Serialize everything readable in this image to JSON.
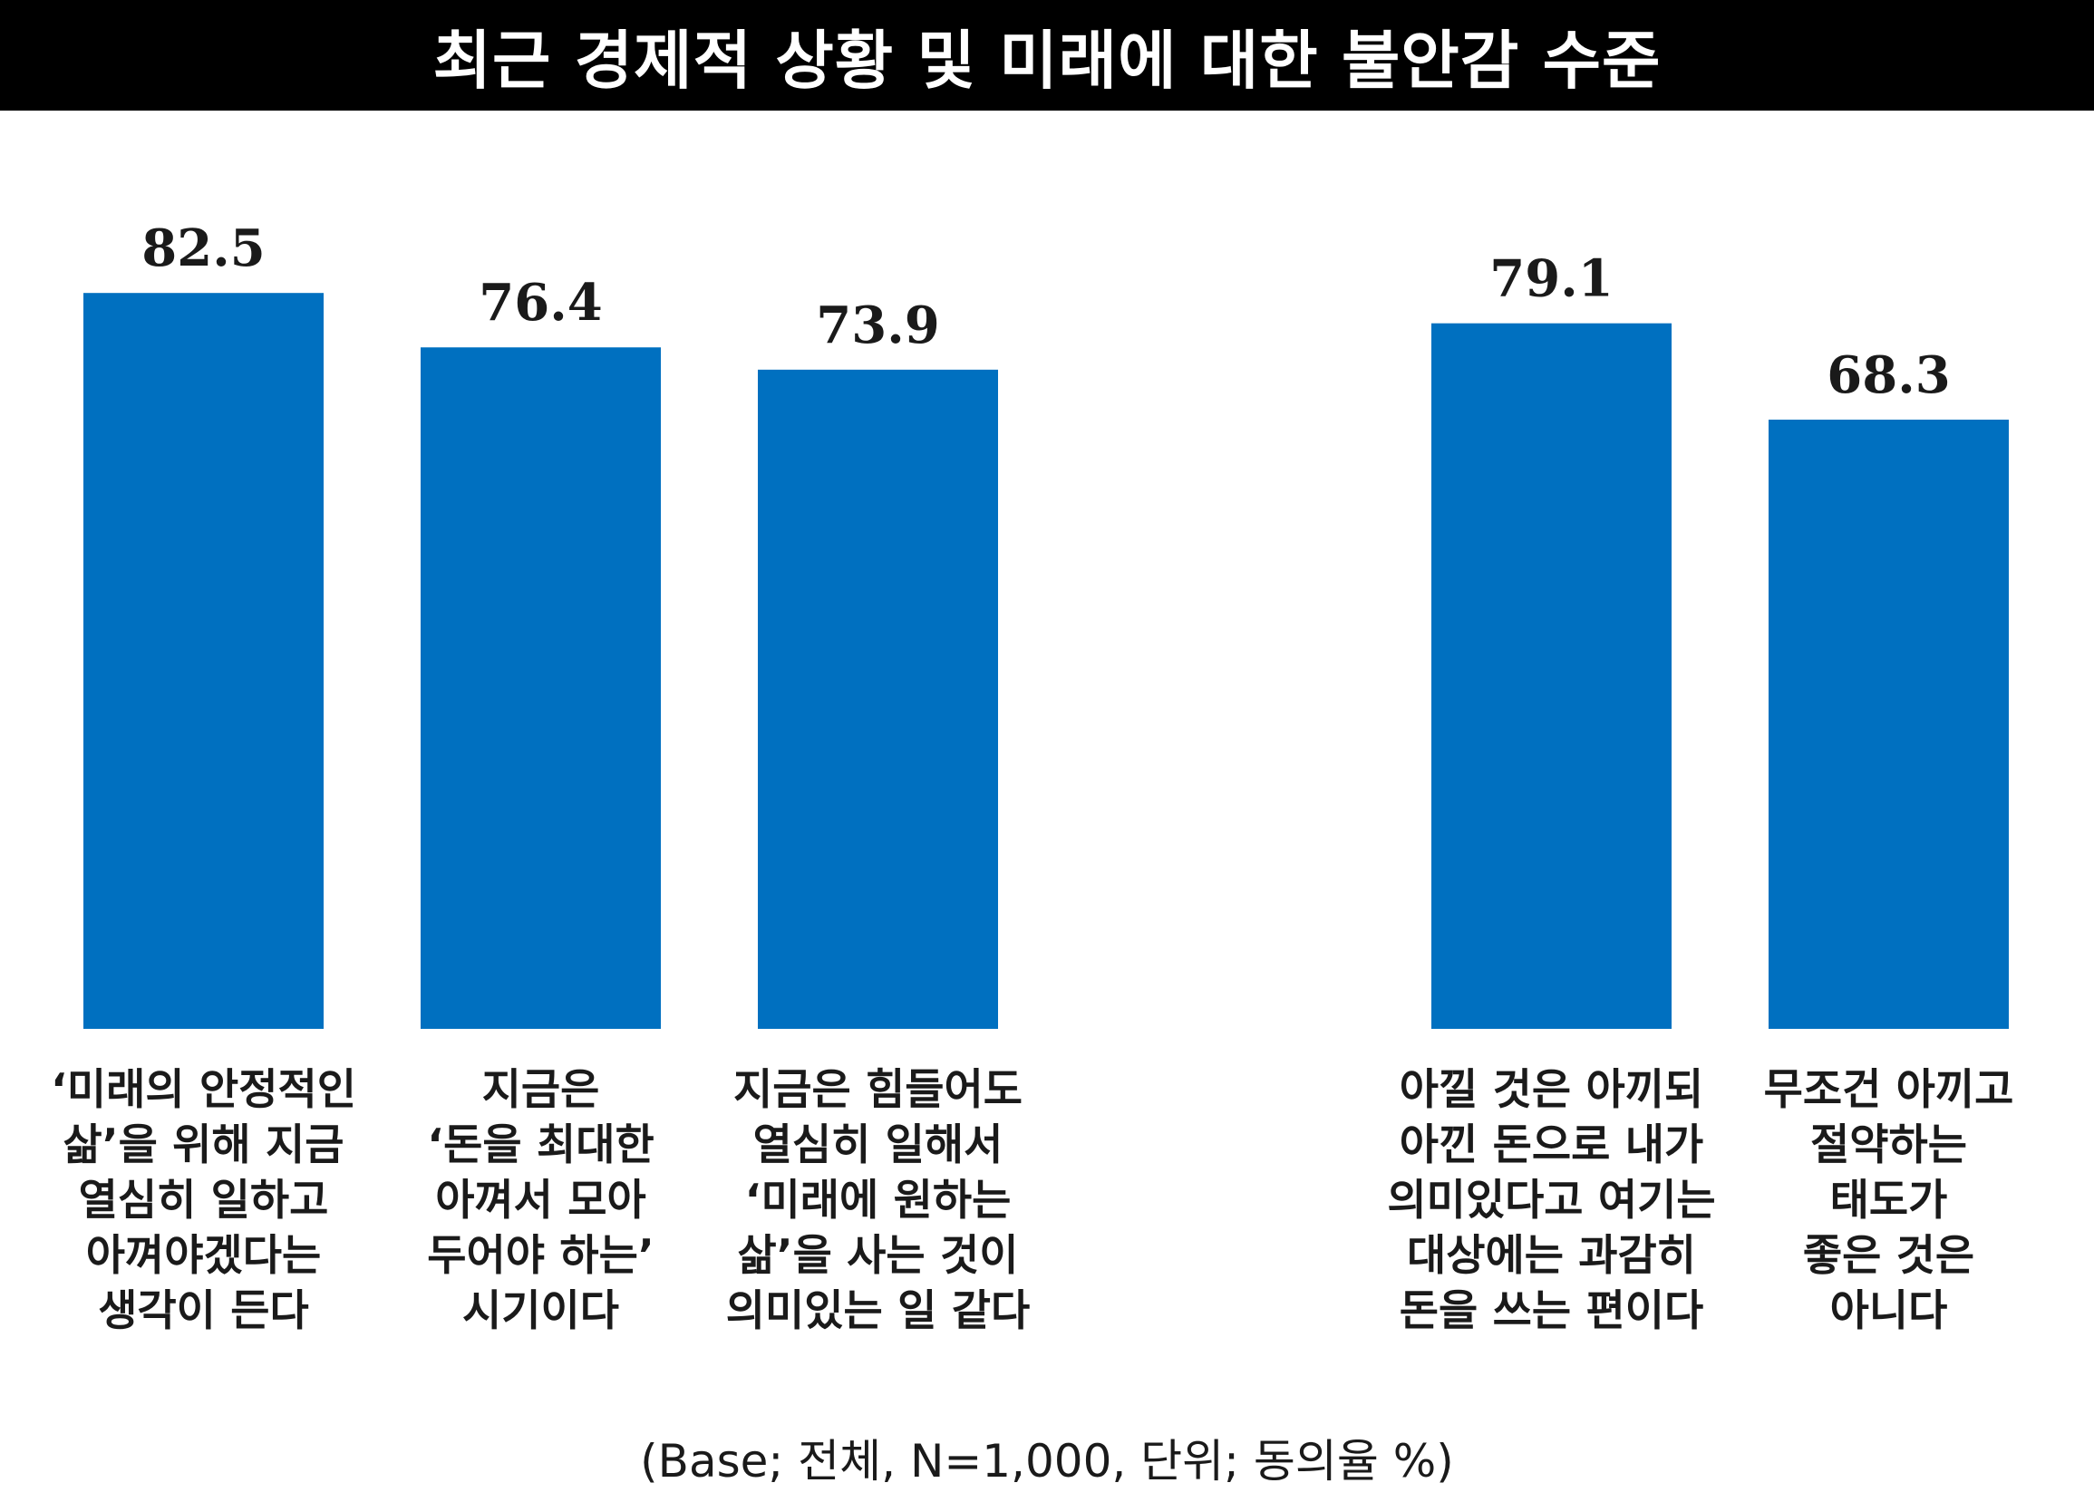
{
  "title": "최근 경제적 상황 및 미래에 대한 불안감 수준",
  "footnote": "(Base; 전체, N=1,000, 단위; 동의율 %)",
  "colors": {
    "bar": "#0070c0",
    "title_bg": "#000000",
    "title_text": "#ffffff"
  },
  "chart_data": {
    "type": "bar",
    "title": "최근 경제적 상황 및 미래에 대한 불안감 수준",
    "xlabel": "",
    "ylabel": "",
    "grid": false,
    "categories": [
      "‘미래의 안정적인\n삶’을 위해 지금\n열심히 일하고\n아껴야겠다는\n생각이 든다",
      "지금은\n‘돈을 최대한\n아껴서 모아\n두어야 하는’\n시기이다",
      "지금은 힘들어도\n열심히 일해서\n‘미래에 원하는\n삶’을 사는 것이\n의미있는 일 같다",
      "아낄 것은 아끼되\n아낀 돈으로 내가\n의미있다고 여기는\n대상에는 과감히\n돈을 쓰는 편이다",
      "무조건 아끼고\n절약하는\n태도가\n좋은 것은\n아니다"
    ],
    "values": [
      82.5,
      76.4,
      73.9,
      79.1,
      68.3
    ],
    "value_labels": [
      "82.5",
      "76.4",
      "73.9",
      "79.1",
      "68.3"
    ],
    "groups": [
      [
        0,
        1,
        2
      ],
      [
        3,
        4
      ]
    ],
    "ylim": [
      0,
      100
    ]
  }
}
